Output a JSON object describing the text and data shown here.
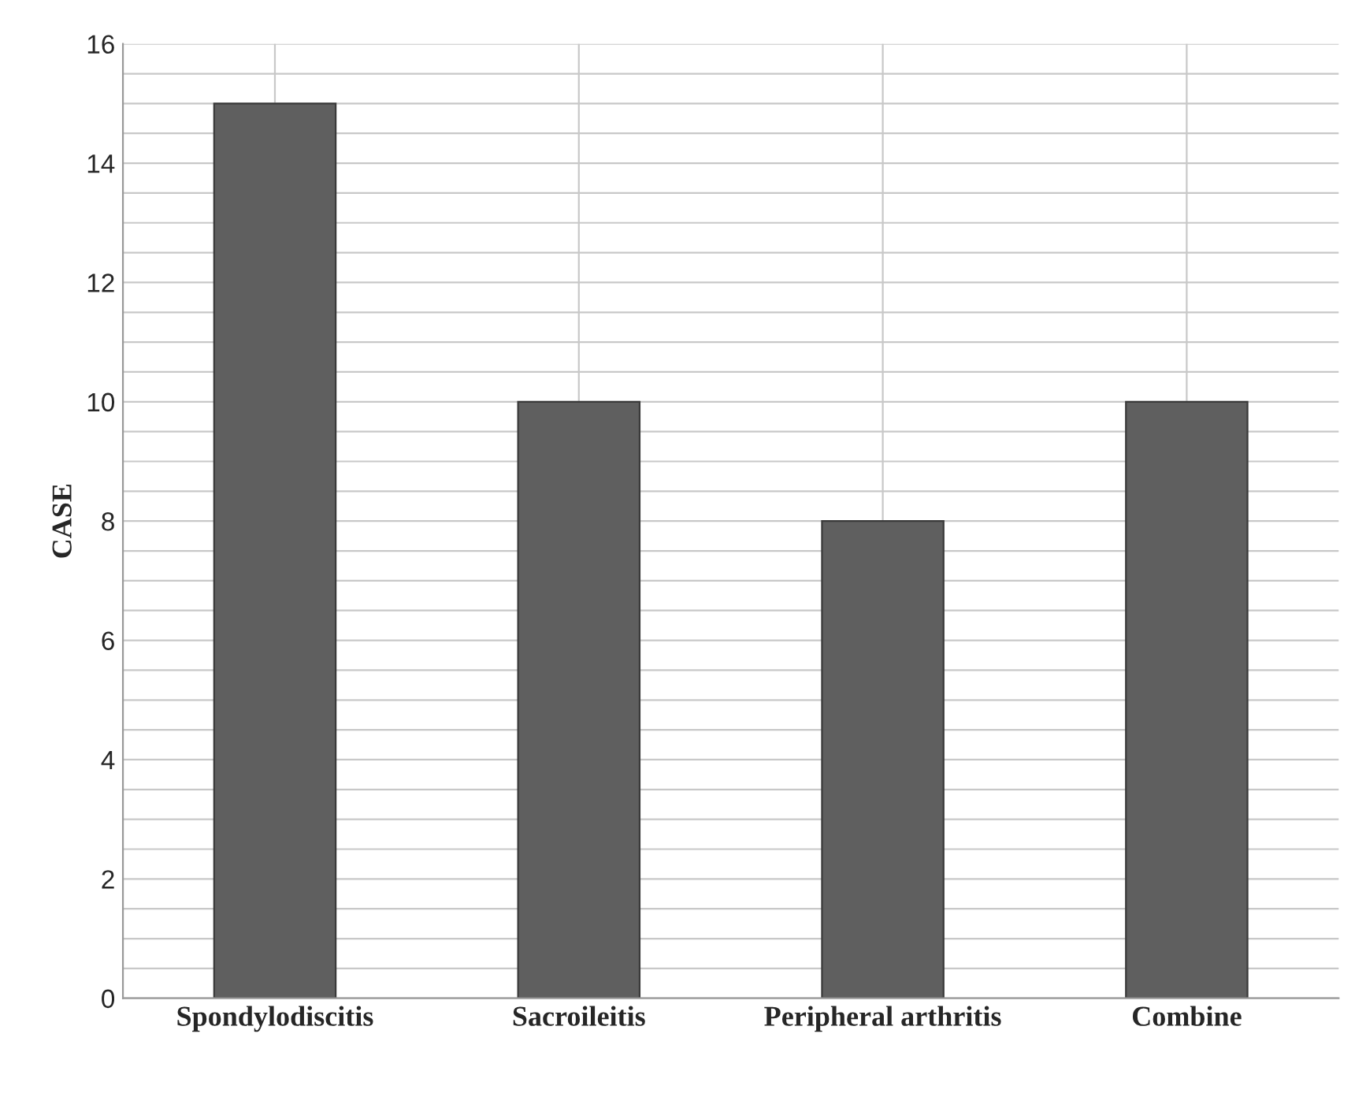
{
  "chart_data": {
    "type": "bar",
    "ylabel": "CASE",
    "categories": [
      "Spondylodiscitis",
      "Sacroileitis",
      "Peripheral arthritis",
      "Combine"
    ],
    "values": [
      15,
      10,
      8,
      10
    ],
    "color": "#5f5f5f",
    "ylim": [
      0,
      16
    ],
    "yticks": [
      0,
      {
        "value": 0.5,
        "label": null
      },
      {
        "value": 1,
        "label": null
      },
      {
        "value": 1.5,
        "label": null
      },
      2,
      {
        "value": 2.5,
        "label": null
      },
      {
        "value": 3,
        "label": null
      },
      {
        "value": 3.5,
        "label": null
      },
      4,
      {
        "value": 4.5,
        "label": null
      },
      {
        "value": 5,
        "label": null
      },
      {
        "value": 5.5,
        "label": null
      },
      6,
      {
        "value": 6.5,
        "label": null
      },
      {
        "value": 7,
        "label": null
      },
      {
        "value": 7.5,
        "label": null
      },
      8,
      {
        "value": 8.5,
        "label": null
      },
      {
        "value": 9,
        "label": null
      },
      {
        "value": 9.5,
        "label": null
      },
      10,
      {
        "value": 10.5,
        "label": null
      },
      {
        "value": 11,
        "label": null
      },
      {
        "value": 11.5,
        "label": null
      },
      12,
      {
        "value": 12.5,
        "label": null
      },
      {
        "value": 13,
        "label": null
      },
      {
        "value": 13.5,
        "label": null
      },
      14,
      {
        "value": 14.5,
        "label": null
      },
      {
        "value": 15,
        "label": null
      },
      {
        "value": 15.5,
        "label": null
      },
      16
    ],
    "grid": true
  }
}
